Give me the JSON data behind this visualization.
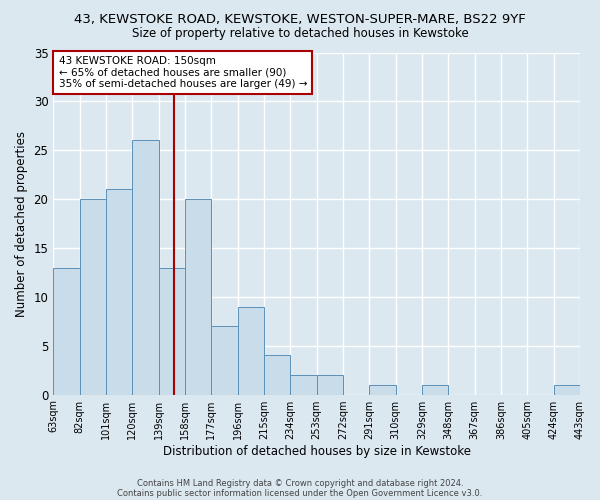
{
  "title1": "43, KEWSTOKE ROAD, KEWSTOKE, WESTON-SUPER-MARE, BS22 9YF",
  "title2": "Size of property relative to detached houses in Kewstoke",
  "xlabel": "Distribution of detached houses by size in Kewstoke",
  "ylabel": "Number of detached properties",
  "bin_edges": [
    63,
    82,
    101,
    120,
    139,
    158,
    177,
    196,
    215,
    234,
    253,
    272,
    291,
    310,
    329,
    348,
    367,
    386,
    405,
    424,
    443
  ],
  "bar_heights": [
    13,
    20,
    21,
    26,
    13,
    20,
    7,
    9,
    4,
    2,
    2,
    0,
    1,
    0,
    1,
    0,
    0,
    0,
    0,
    1
  ],
  "bar_color": "#c9dcea",
  "bar_edge_color": "#5b90b8",
  "property_size": 150,
  "annotation_line1": "43 KEWSTOKE ROAD: 150sqm",
  "annotation_line2": "← 65% of detached houses are smaller (90)",
  "annotation_line3": "35% of semi-detached houses are larger (49) →",
  "annotation_box_color": "#ffffff",
  "annotation_box_edge_color": "#aa0000",
  "vline_color": "#aa0000",
  "ylim": [
    0,
    35
  ],
  "yticks": [
    0,
    5,
    10,
    15,
    20,
    25,
    30,
    35
  ],
  "background_color": "#dce8f0",
  "grid_color": "#ffffff",
  "footer1": "Contains HM Land Registry data © Crown copyright and database right 2024.",
  "footer2": "Contains public sector information licensed under the Open Government Licence v3.0."
}
